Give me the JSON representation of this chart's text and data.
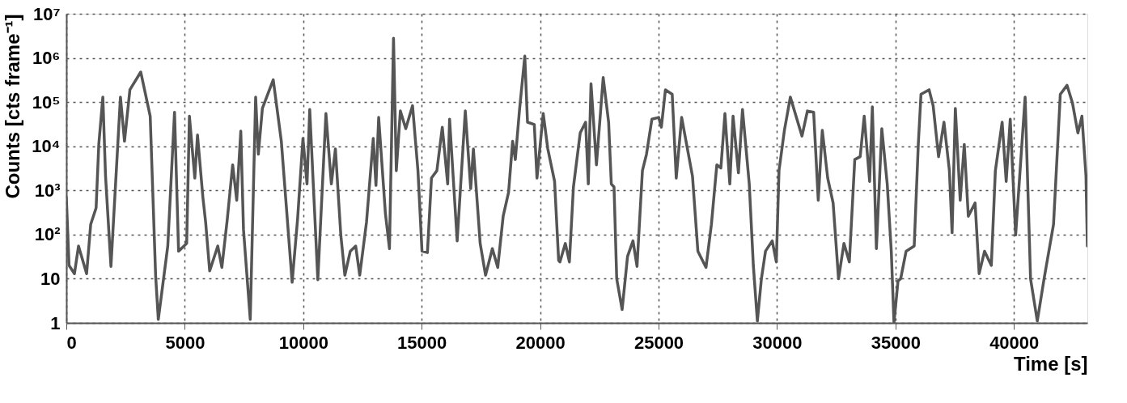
{
  "chart_data": {
    "type": "line",
    "xlabel": "Time [s]",
    "ylabel": "Counts [cts frame⁻¹]",
    "x": [
      0,
      114,
      342,
      514,
      856,
      1028,
      1256,
      1370,
      1541,
      1655,
      1883,
      2284,
      2455,
      2683,
      3140,
      3540,
      3768,
      3882,
      4282,
      4567,
      4738,
      5080,
      5195,
      5423,
      5537,
      5765,
      5880,
      6051,
      6393,
      6565,
      6793,
      7021,
      7192,
      7364,
      7478,
      7763,
      7991,
      8105,
      8276,
      8733,
      9075,
      9532,
      9760,
      9988,
      10160,
      10274,
      10616,
      10958,
      11187,
      11358,
      11586,
      11757,
      11986,
      12214,
      12385,
      12670,
      12956,
      13070,
      13184,
      13469,
      13640,
      13811,
      13929,
      14100,
      14328,
      14614,
      14842,
      15013,
      15242,
      15413,
      15642,
      15870,
      16098,
      16178,
      16498,
      16841,
      17069,
      17183,
      17469,
      17697,
      17983,
      18211,
      18440,
      18668,
      18839,
      18953,
      19125,
      19353,
      19467,
      19753,
      19867,
      20130,
      20324,
      20610,
      20781,
      20835,
      21064,
      21235,
      21406,
      21692,
      21920,
      22034,
      22148,
      22377,
      22662,
      22891,
      23005,
      23119,
      23233,
      23462,
      23690,
      23919,
      24090,
      24318,
      24490,
      24718,
      25004,
      25118,
      25289,
      25575,
      25746,
      25974,
      26431,
      26659,
      27002,
      27230,
      27459,
      27630,
      27801,
      28007,
      28144,
      28371,
      28542,
      28828,
      29000,
      29170,
      29341,
      29513,
      29798,
      29970,
      30084,
      30312,
      30563,
      31054,
      31283,
      31546,
      31740,
      31911,
      32139,
      32368,
      32596,
      32825,
      33053,
      33282,
      33510,
      33681,
      33909,
      34024,
      34195,
      34423,
      34652,
      34823,
      34937,
      35108,
      35220,
      35449,
      35791,
      35963,
      36077,
      36419,
      36590,
      36819,
      37047,
      37276,
      37390,
      37527,
      37732,
      37904,
      38075,
      38361,
      38532,
      38760,
      39046,
      39217,
      39503,
      39674,
      39845,
      40073,
      40473,
      40702,
      40987,
      41273,
      41672,
      41958,
      42243,
      42472,
      42700,
      42871,
      43042,
      43100
    ],
    "series": [
      {
        "color": "#555555",
        "values": [
          690,
          20,
          13,
          55,
          13,
          170,
          400,
          11000,
          130000,
          2100,
          19,
          130000,
          13000,
          190000,
          480000,
          48000,
          12,
          1.2,
          55,
          59000,
          42,
          63,
          48000,
          1900,
          18000,
          690,
          190,
          15,
          55,
          18,
          220,
          3800,
          600,
          22000,
          130,
          1.2,
          130000,
          6600,
          72000,
          320000,
          13000,
          8.3,
          220,
          15000,
          1400,
          68000,
          9.5,
          55000,
          1400,
          8700,
          98,
          12,
          42,
          55,
          12,
          190,
          15000,
          1300,
          45000,
          300,
          48,
          2800000,
          2800,
          63000,
          25000,
          83000,
          2800,
          42,
          39,
          1900,
          2800,
          27000,
          1400,
          41000,
          72,
          63000,
          1100,
          8700,
          63,
          12,
          48,
          18,
          260,
          910,
          13000,
          5000,
          63000,
          1100000,
          35000,
          31000,
          1900,
          55000,
          8700,
          1600,
          26,
          24,
          63,
          24,
          1200,
          20000,
          35000,
          1400,
          260000,
          3800,
          360000,
          35000,
          1400,
          1200,
          10,
          2,
          32,
          72,
          19,
          2800,
          6600,
          41000,
          45000,
          27000,
          190000,
          150000,
          1900,
          45000,
          2100,
          42,
          18,
          170,
          3800,
          3200,
          55000,
          1400,
          48000,
          2500,
          68000,
          1400,
          20,
          1.1,
          10,
          42,
          72,
          24,
          2800,
          23000,
          130000,
          17000,
          63000,
          59000,
          600,
          23000,
          1900,
          520,
          10,
          63,
          24,
          5000,
          5800,
          48000,
          1600,
          78000,
          48,
          25000,
          1400,
          42,
          1,
          8.9,
          10,
          42,
          55,
          11000,
          150000,
          190000,
          83000,
          5800,
          35000,
          2800,
          110,
          72000,
          600,
          11000,
          260,
          520,
          13,
          42,
          20,
          2800,
          35000,
          1600,
          41000,
          98,
          130000,
          10,
          1.1,
          10,
          170,
          150000,
          240000,
          95000,
          20000,
          48000,
          2100,
          55
        ]
      }
    ],
    "xlim": [
      0,
      43100
    ],
    "xticks": [
      0,
      5000,
      10000,
      15000,
      20000,
      25000,
      30000,
      35000,
      40000
    ],
    "ylim": [
      1,
      10000000
    ],
    "log": true,
    "yticks": [
      1,
      10,
      {
        "value": 100,
        "label": "10²"
      },
      {
        "value": 1000,
        "label": "10³"
      },
      {
        "value": 10000,
        "label": "10⁴"
      },
      {
        "value": 100000,
        "label": "10⁵"
      },
      {
        "value": 1000000,
        "label": "10⁶"
      },
      {
        "value": 10000000,
        "label": "10⁷"
      }
    ],
    "grid": true,
    "marker": "none",
    "line_style": "solid"
  }
}
